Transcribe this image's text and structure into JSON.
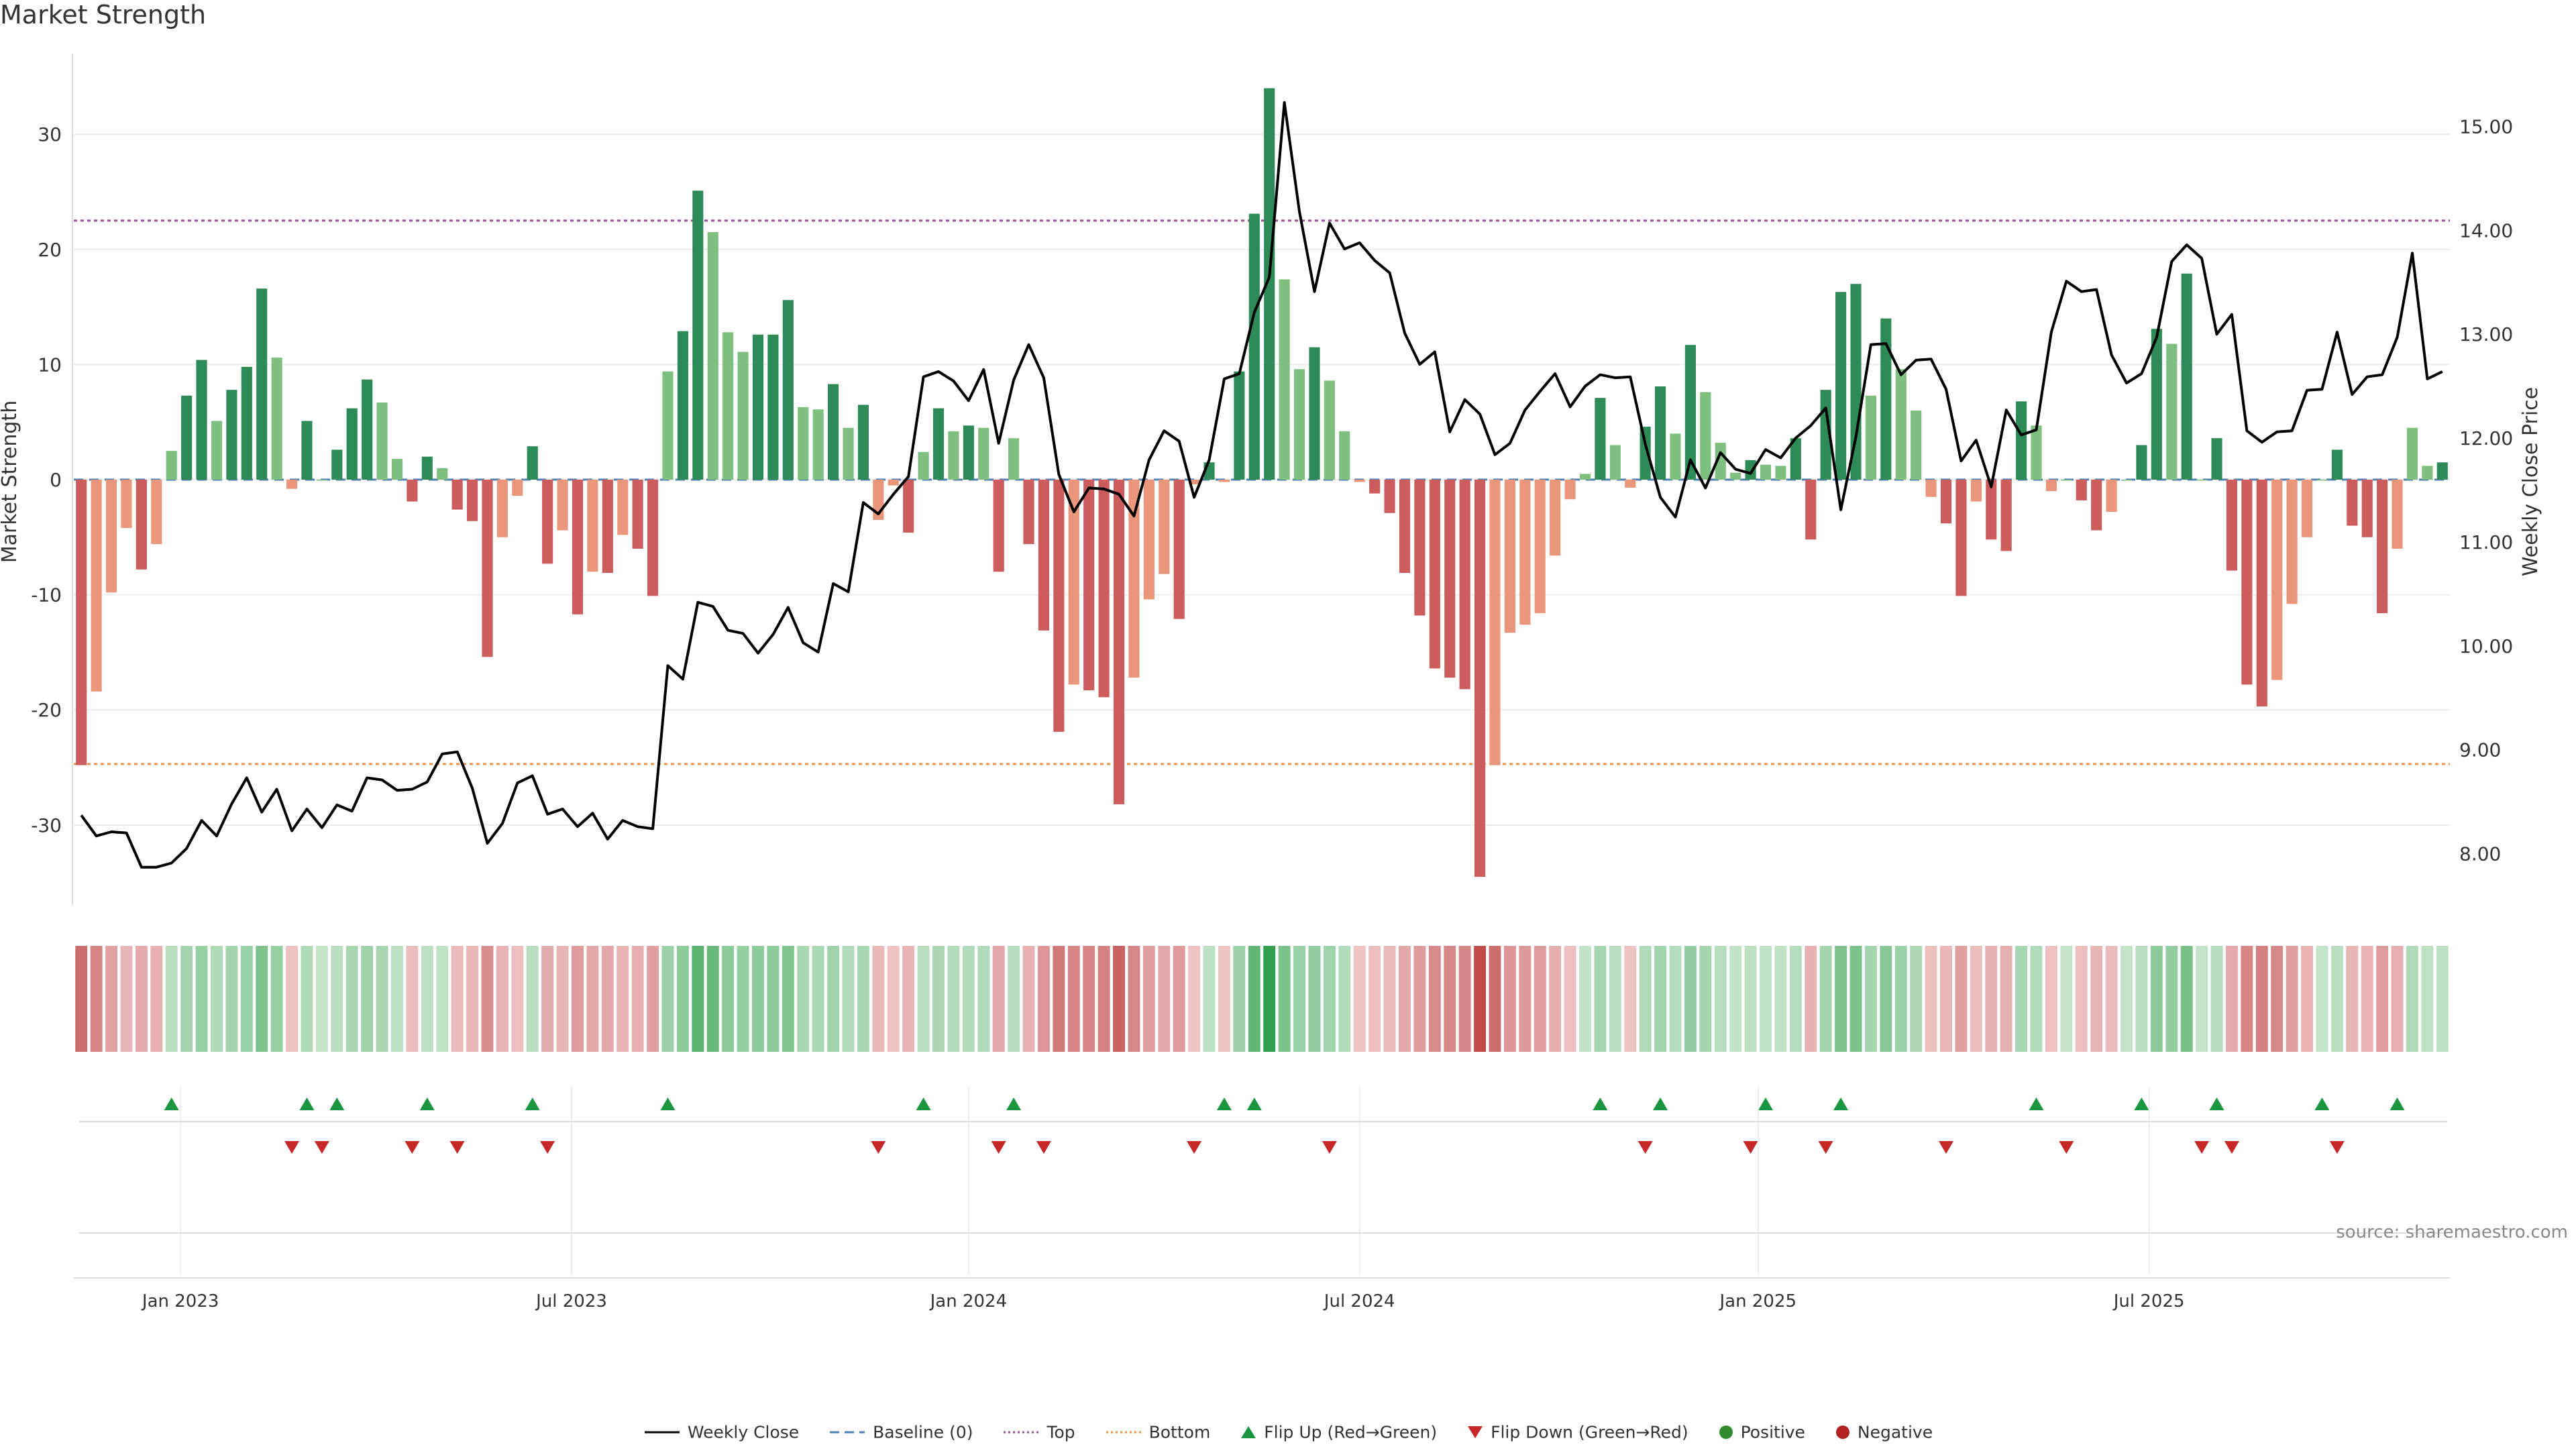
{
  "chart_data": {
    "type": "bar",
    "title": "Market Strength",
    "source": "source: sharemaestro.com",
    "ylabel": "Market Strength",
    "y2label": "Weekly Close Price",
    "ylim": [
      -37,
      37
    ],
    "y2lim": [
      7.5,
      15.7
    ],
    "yticks": [
      30,
      20,
      10,
      0,
      -10,
      -20,
      -30
    ],
    "y2ticks": [
      15,
      14,
      13,
      12,
      11,
      10,
      9,
      8
    ],
    "y2tick_labels": [
      "15.00",
      "14.00",
      "13.00",
      "12.00",
      "11.00",
      "10.00",
      "9.00",
      "8.00"
    ],
    "top_level": 22.5,
    "bottom_level": -24.7,
    "x_tick_labels": [
      {
        "label": "Jan 2023",
        "index": 6.6
      },
      {
        "label": "Jul 2023",
        "index": 32.6
      },
      {
        "label": "Jan 2024",
        "index": 59
      },
      {
        "label": "Jul 2024",
        "index": 85
      },
      {
        "label": "Jan 2025",
        "index": 111.5
      },
      {
        "label": "Jul 2025",
        "index": 137.5
      }
    ],
    "series": [
      {
        "name": "Market Strength",
        "values": [
          -24.8,
          -18.4,
          -9.8,
          -4.2,
          -7.8,
          -5.6,
          2.5,
          7.3,
          10.4,
          5.1,
          7.8,
          9.8,
          16.6,
          10.6,
          -0.8,
          5.1,
          0,
          2.6,
          6.2,
          8.7,
          6.7,
          1.8,
          -1.9,
          2,
          1,
          -2.6,
          -3.6,
          -15.4,
          -5,
          -1.4,
          2.9,
          -7.3,
          -4.4,
          -11.7,
          -8,
          -8.1,
          -4.8,
          -6,
          -10.1,
          9.4,
          12.9,
          25.1,
          21.5,
          12.8,
          11.1,
          12.6,
          12.6,
          15.6,
          6.3,
          6.1,
          8.3,
          4.5,
          6.5,
          -3.5,
          -0.5,
          -4.6,
          2.4,
          6.2,
          4.2,
          4.7,
          4.5,
          -8,
          3.6,
          -5.6,
          -13.1,
          -21.9,
          -17.8,
          -18.3,
          -18.9,
          -28.2,
          -17.2,
          -10.4,
          -8.2,
          -12.1,
          -0.4,
          1.5,
          -0.2,
          9.4,
          23.1,
          34,
          17.4,
          9.6,
          11.5,
          8.6,
          4.2,
          -0.2,
          -1.2,
          -2.9,
          -8.1,
          -11.8,
          -16.4,
          -17.2,
          -18.2,
          -34.5,
          -24.8,
          -13.3,
          -12.6,
          -11.6,
          -6.6,
          -1.7,
          0.5,
          7.1,
          3,
          -0.7,
          4.6,
          8.1,
          4,
          11.7,
          7.6,
          3.2,
          0.6,
          1.7,
          1.3,
          1.2,
          3.6,
          -5.2,
          7.8,
          16.3,
          17,
          7.3,
          14,
          9.6,
          6,
          -1.5,
          -3.8,
          -10.1,
          -1.9,
          -5.2,
          -6.2,
          6.8,
          4.7,
          -1,
          0,
          -1.8,
          -4.4,
          -2.8,
          0,
          3,
          13.1,
          11.8,
          17.9,
          0,
          3.6,
          -7.9,
          -17.8,
          -19.7,
          -17.4,
          -10.8,
          -5,
          0,
          2.6,
          -4,
          -5,
          -11.6,
          -6,
          4.5,
          1.2,
          1.5
        ]
      },
      {
        "name": "Weekly Close",
        "values": [
          8.37,
          8.17,
          8.21,
          8.2,
          7.87,
          7.87,
          7.91,
          8.05,
          8.32,
          8.17,
          8.48,
          8.73,
          8.4,
          8.62,
          8.22,
          8.43,
          8.25,
          8.47,
          8.41,
          8.73,
          8.71,
          8.61,
          8.62,
          8.69,
          8.96,
          8.98,
          8.63,
          8.1,
          8.29,
          8.68,
          8.75,
          8.38,
          8.43,
          8.26,
          8.39,
          8.14,
          8.32,
          8.26,
          8.24,
          9.81,
          9.68,
          10.42,
          10.38,
          10.15,
          10.12,
          9.93,
          10.11,
          10.37,
          10.03,
          9.94,
          10.6,
          10.52,
          11.38,
          11.27,
          11.46,
          11.63,
          12.59,
          12.64,
          12.55,
          12.36,
          12.66,
          11.95,
          12.56,
          12.9,
          12.58,
          11.65,
          11.29,
          11.52,
          11.51,
          11.46,
          11.25,
          11.79,
          12.07,
          11.97,
          11.43,
          11.79,
          12.57,
          12.62,
          13.21,
          13.55,
          15.23,
          14.18,
          13.41,
          14.07,
          13.82,
          13.88,
          13.71,
          13.59,
          13.01,
          12.71,
          12.83,
          12.06,
          12.37,
          12.23,
          11.84,
          11.95,
          12.27,
          12.45,
          12.62,
          12.3,
          12.5,
          12.61,
          12.58,
          12.59,
          11.94,
          11.43,
          11.24,
          11.79,
          11.52,
          11.86,
          11.7,
          11.66,
          11.89,
          11.81,
          12,
          12.12,
          12.29,
          11.31,
          12.01,
          12.9,
          12.91,
          12.61,
          12.75,
          12.76,
          12.47,
          11.78,
          11.98,
          11.53,
          12.27,
          12.03,
          12.08,
          13.02,
          13.51,
          13.41,
          13.43,
          12.8,
          12.53,
          12.62,
          12.97,
          13.7,
          13.86,
          13.73,
          13,
          13.19,
          12.07,
          11.96,
          12.06,
          12.07,
          12.46,
          12.47,
          13.02,
          12.42,
          12.59,
          12.61,
          12.97,
          13.78,
          12.57,
          12.64
        ]
      }
    ],
    "baseline_name": "Baseline (0)",
    "top_name": "Top",
    "bottom_name": "Bottom",
    "flip_up_name": "Flip Up (Red→Green)",
    "flip_down_name": "Flip Down (Green→Red)",
    "positive_name": "Positive",
    "negative_name": "Negative",
    "flip_up_indices": [
      6,
      15,
      17,
      23,
      30,
      39,
      56,
      62,
      76,
      78,
      101,
      105,
      112,
      117,
      130,
      137,
      142,
      149,
      154
    ],
    "flip_down_indices": [
      14,
      16,
      22,
      25,
      31,
      53,
      61,
      64,
      74,
      83,
      104,
      111,
      116,
      124,
      132,
      141,
      143,
      150
    ]
  },
  "colors": {
    "pos_strong": "#2e8b57",
    "pos_weak": "#7fbf7f",
    "neg_strong": "#cd5c5c",
    "neg_weak": "#e9967a",
    "line": "#000000",
    "baseline": "#4f7fb3",
    "top_line": "#9b4f96",
    "bottom_line": "#e8924a",
    "flip_up": "#1a9641",
    "flip_down": "#c62828",
    "positive": "#2e8b2e",
    "negative": "#b22222",
    "grid": "#ececec"
  }
}
